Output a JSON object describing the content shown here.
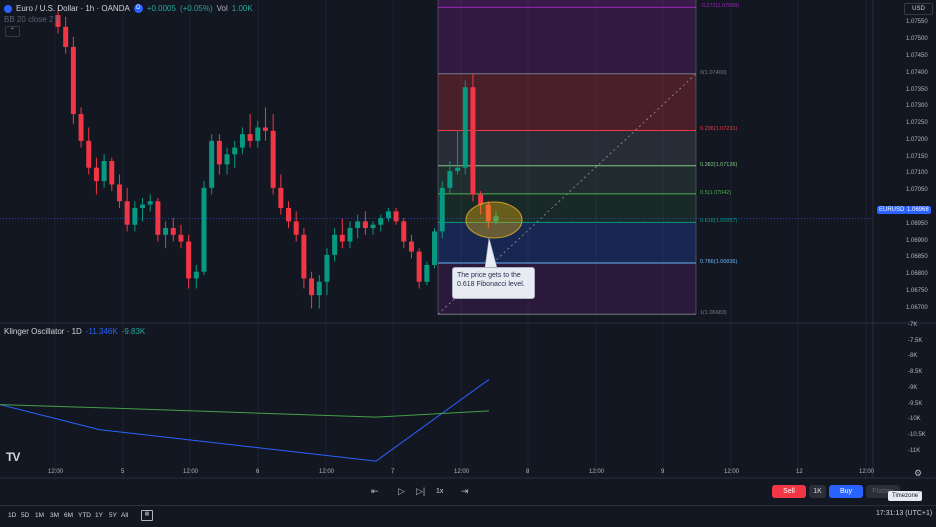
{
  "header": {
    "symbol_title": "Euro / U.S. Dollar · 1h · OANDA",
    "change_value": "+0.0005",
    "change_percent": "(+0.05%)",
    "vol_label": "Vol",
    "vol_value": "1.00K",
    "indicator_line": "BB 20 close 2 0",
    "currency": "USD"
  },
  "price_axis": {
    "labels": [
      "1.07550",
      "1.07500",
      "1.07450",
      "1.07400",
      "1.07350",
      "1.07300",
      "1.07250",
      "1.07200",
      "1.07150",
      "1.07100",
      "1.07050",
      "1.06950",
      "1.06900",
      "1.06850",
      "1.06800",
      "1.06750",
      "1.06700"
    ],
    "symbol_tag": "EURUSD",
    "current_price": "1.06968"
  },
  "fibonacci": {
    "levels": [
      {
        "label": "-0.272(1.07598)",
        "price": 1.07598,
        "color": "#9c27b0"
      },
      {
        "label": "0(1.07400)",
        "price": 1.074,
        "color": "#787b86"
      },
      {
        "label": "0.236(1.07231)",
        "price": 1.07231,
        "color": "#f23645"
      },
      {
        "label": "0.382(1.07126)",
        "price": 1.07126,
        "color": "#81c784"
      },
      {
        "label": "0.5(1.07042)",
        "price": 1.07042,
        "color": "#4caf50"
      },
      {
        "label": "0.618(1.06957)",
        "price": 1.06957,
        "color": "#089981"
      },
      {
        "label": "0.786(1.06836)",
        "price": 1.06836,
        "color": "#64b5f6"
      },
      {
        "label": "1(1.06683)",
        "price": 1.06683,
        "color": "#787b86"
      }
    ]
  },
  "callout": {
    "text": "The price gets to the 0.618 Fibonacci level."
  },
  "oscillator": {
    "name": "Klinger Oscillator · 1D",
    "value1": "-11.346K",
    "value2": "-9.83K",
    "axis_labels": [
      "-7K",
      "-7.5K",
      "-8K",
      "-8.5K",
      "-9K",
      "-9.5K",
      "-10K",
      "-10.5K",
      "-11K"
    ]
  },
  "time_axis": {
    "labels": [
      "12:00",
      "5",
      "12:00",
      "6",
      "12:00",
      "7",
      "12:00",
      "8",
      "12:00",
      "9",
      "12:00",
      "12",
      "12:00"
    ]
  },
  "playback": {
    "speed": "1x"
  },
  "trade": {
    "sell_label": "Sell",
    "quantity": "1K",
    "buy_label": "Buy",
    "flatten_label": "Flatten"
  },
  "timezone_tooltip": "Timezone",
  "bottom_bar": {
    "timeframes": [
      "1D",
      "5D",
      "1M",
      "3M",
      "6M",
      "YTD",
      "1Y",
      "5Y",
      "All"
    ],
    "clock": "17:31:13 (UTC+1)"
  },
  "logo": "TV",
  "colors": {
    "up": "#089981",
    "down": "#f23645",
    "background": "#131722",
    "klinger_line": "#2962ff",
    "klinger_signal": "#43a047"
  },
  "chart_data": {
    "type": "candlestick",
    "pair": "EURUSD",
    "timeframe": "1h",
    "ylim": [
      1.0666,
      1.0762
    ],
    "candles": [
      {
        "o": 1.07575,
        "h": 1.076,
        "l": 1.0752,
        "c": 1.0754
      },
      {
        "o": 1.0754,
        "h": 1.0757,
        "l": 1.0746,
        "c": 1.0748
      },
      {
        "o": 1.0748,
        "h": 1.0751,
        "l": 1.0725,
        "c": 1.0728
      },
      {
        "o": 1.0728,
        "h": 1.073,
        "l": 1.0718,
        "c": 1.072
      },
      {
        "o": 1.072,
        "h": 1.0724,
        "l": 1.071,
        "c": 1.0712
      },
      {
        "o": 1.0712,
        "h": 1.0715,
        "l": 1.0704,
        "c": 1.0708
      },
      {
        "o": 1.0708,
        "h": 1.0716,
        "l": 1.0706,
        "c": 1.0714
      },
      {
        "o": 1.0714,
        "h": 1.0715,
        "l": 1.0705,
        "c": 1.0707
      },
      {
        "o": 1.0707,
        "h": 1.071,
        "l": 1.07,
        "c": 1.0702
      },
      {
        "o": 1.0702,
        "h": 1.0706,
        "l": 1.0693,
        "c": 1.0695
      },
      {
        "o": 1.0695,
        "h": 1.0702,
        "l": 1.0693,
        "c": 1.07
      },
      {
        "o": 1.07,
        "h": 1.0703,
        "l": 1.0696,
        "c": 1.0701
      },
      {
        "o": 1.0701,
        "h": 1.0704,
        "l": 1.0699,
        "c": 1.0702
      },
      {
        "o": 1.0702,
        "h": 1.0703,
        "l": 1.069,
        "c": 1.0692
      },
      {
        "o": 1.0692,
        "h": 1.0696,
        "l": 1.0688,
        "c": 1.0694
      },
      {
        "o": 1.0694,
        "h": 1.0697,
        "l": 1.069,
        "c": 1.0692
      },
      {
        "o": 1.0692,
        "h": 1.0695,
        "l": 1.0688,
        "c": 1.069
      },
      {
        "o": 1.069,
        "h": 1.0692,
        "l": 1.0676,
        "c": 1.0679
      },
      {
        "o": 1.0679,
        "h": 1.0683,
        "l": 1.0676,
        "c": 1.0681
      },
      {
        "o": 1.0681,
        "h": 1.0708,
        "l": 1.068,
        "c": 1.0706
      },
      {
        "o": 1.0706,
        "h": 1.0722,
        "l": 1.0704,
        "c": 1.072
      },
      {
        "o": 1.072,
        "h": 1.0722,
        "l": 1.071,
        "c": 1.0713
      },
      {
        "o": 1.0713,
        "h": 1.0718,
        "l": 1.071,
        "c": 1.0716
      },
      {
        "o": 1.0716,
        "h": 1.072,
        "l": 1.0712,
        "c": 1.0718
      },
      {
        "o": 1.0718,
        "h": 1.0724,
        "l": 1.0716,
        "c": 1.0722
      },
      {
        "o": 1.0722,
        "h": 1.0728,
        "l": 1.0718,
        "c": 1.072
      },
      {
        "o": 1.072,
        "h": 1.0726,
        "l": 1.0718,
        "c": 1.0724
      },
      {
        "o": 1.0724,
        "h": 1.073,
        "l": 1.072,
        "c": 1.0723
      },
      {
        "o": 1.0723,
        "h": 1.0728,
        "l": 1.0704,
        "c": 1.0706
      },
      {
        "o": 1.0706,
        "h": 1.071,
        "l": 1.0698,
        "c": 1.07
      },
      {
        "o": 1.07,
        "h": 1.0702,
        "l": 1.0694,
        "c": 1.0696
      },
      {
        "o": 1.0696,
        "h": 1.0699,
        "l": 1.069,
        "c": 1.0692
      },
      {
        "o": 1.0692,
        "h": 1.0694,
        "l": 1.0676,
        "c": 1.0679
      },
      {
        "o": 1.0679,
        "h": 1.0681,
        "l": 1.067,
        "c": 1.0674
      },
      {
        "o": 1.0674,
        "h": 1.068,
        "l": 1.067,
        "c": 1.0678
      },
      {
        "o": 1.0678,
        "h": 1.0688,
        "l": 1.0674,
        "c": 1.0686
      },
      {
        "o": 1.0686,
        "h": 1.0694,
        "l": 1.0684,
        "c": 1.0692
      },
      {
        "o": 1.0692,
        "h": 1.0697,
        "l": 1.0688,
        "c": 1.069
      },
      {
        "o": 1.069,
        "h": 1.0696,
        "l": 1.0688,
        "c": 1.0694
      },
      {
        "o": 1.0694,
        "h": 1.0698,
        "l": 1.0691,
        "c": 1.0696
      },
      {
        "o": 1.0696,
        "h": 1.0699,
        "l": 1.0692,
        "c": 1.0694
      },
      {
        "o": 1.0694,
        "h": 1.0696,
        "l": 1.0692,
        "c": 1.0695
      },
      {
        "o": 1.0695,
        "h": 1.0698,
        "l": 1.0693,
        "c": 1.0697
      },
      {
        "o": 1.0697,
        "h": 1.07,
        "l": 1.0696,
        "c": 1.0699
      },
      {
        "o": 1.0699,
        "h": 1.07,
        "l": 1.0695,
        "c": 1.0696
      },
      {
        "o": 1.0696,
        "h": 1.0697,
        "l": 1.0688,
        "c": 1.069
      },
      {
        "o": 1.069,
        "h": 1.0692,
        "l": 1.0685,
        "c": 1.0687
      },
      {
        "o": 1.0687,
        "h": 1.0688,
        "l": 1.0676,
        "c": 1.0678
      },
      {
        "o": 1.0678,
        "h": 1.0684,
        "l": 1.0677,
        "c": 1.0683
      },
      {
        "o": 1.0683,
        "h": 1.0694,
        "l": 1.0682,
        "c": 1.0693
      },
      {
        "o": 1.0693,
        "h": 1.0708,
        "l": 1.0691,
        "c": 1.0706
      },
      {
        "o": 1.0706,
        "h": 1.0714,
        "l": 1.0704,
        "c": 1.0711
      },
      {
        "o": 1.0711,
        "h": 1.0723,
        "l": 1.071,
        "c": 1.0712
      },
      {
        "o": 1.0712,
        "h": 1.0738,
        "l": 1.071,
        "c": 1.0736
      },
      {
        "o": 1.0736,
        "h": 1.074,
        "l": 1.0702,
        "c": 1.0704
      },
      {
        "o": 1.0704,
        "h": 1.0705,
        "l": 1.0698,
        "c": 1.0701
      },
      {
        "o": 1.0701,
        "h": 1.0702,
        "l": 1.0694,
        "c": 1.0696
      },
      {
        "o": 1.0696,
        "h": 1.0699,
        "l": 1.0695,
        "c": 1.06975
      }
    ],
    "klinger": {
      "oscillator": [
        -9.5,
        -10.3,
        -11.3,
        -8.7
      ],
      "signal": [
        -9.5,
        -9.6,
        -9.9,
        -9.7
      ]
    }
  }
}
